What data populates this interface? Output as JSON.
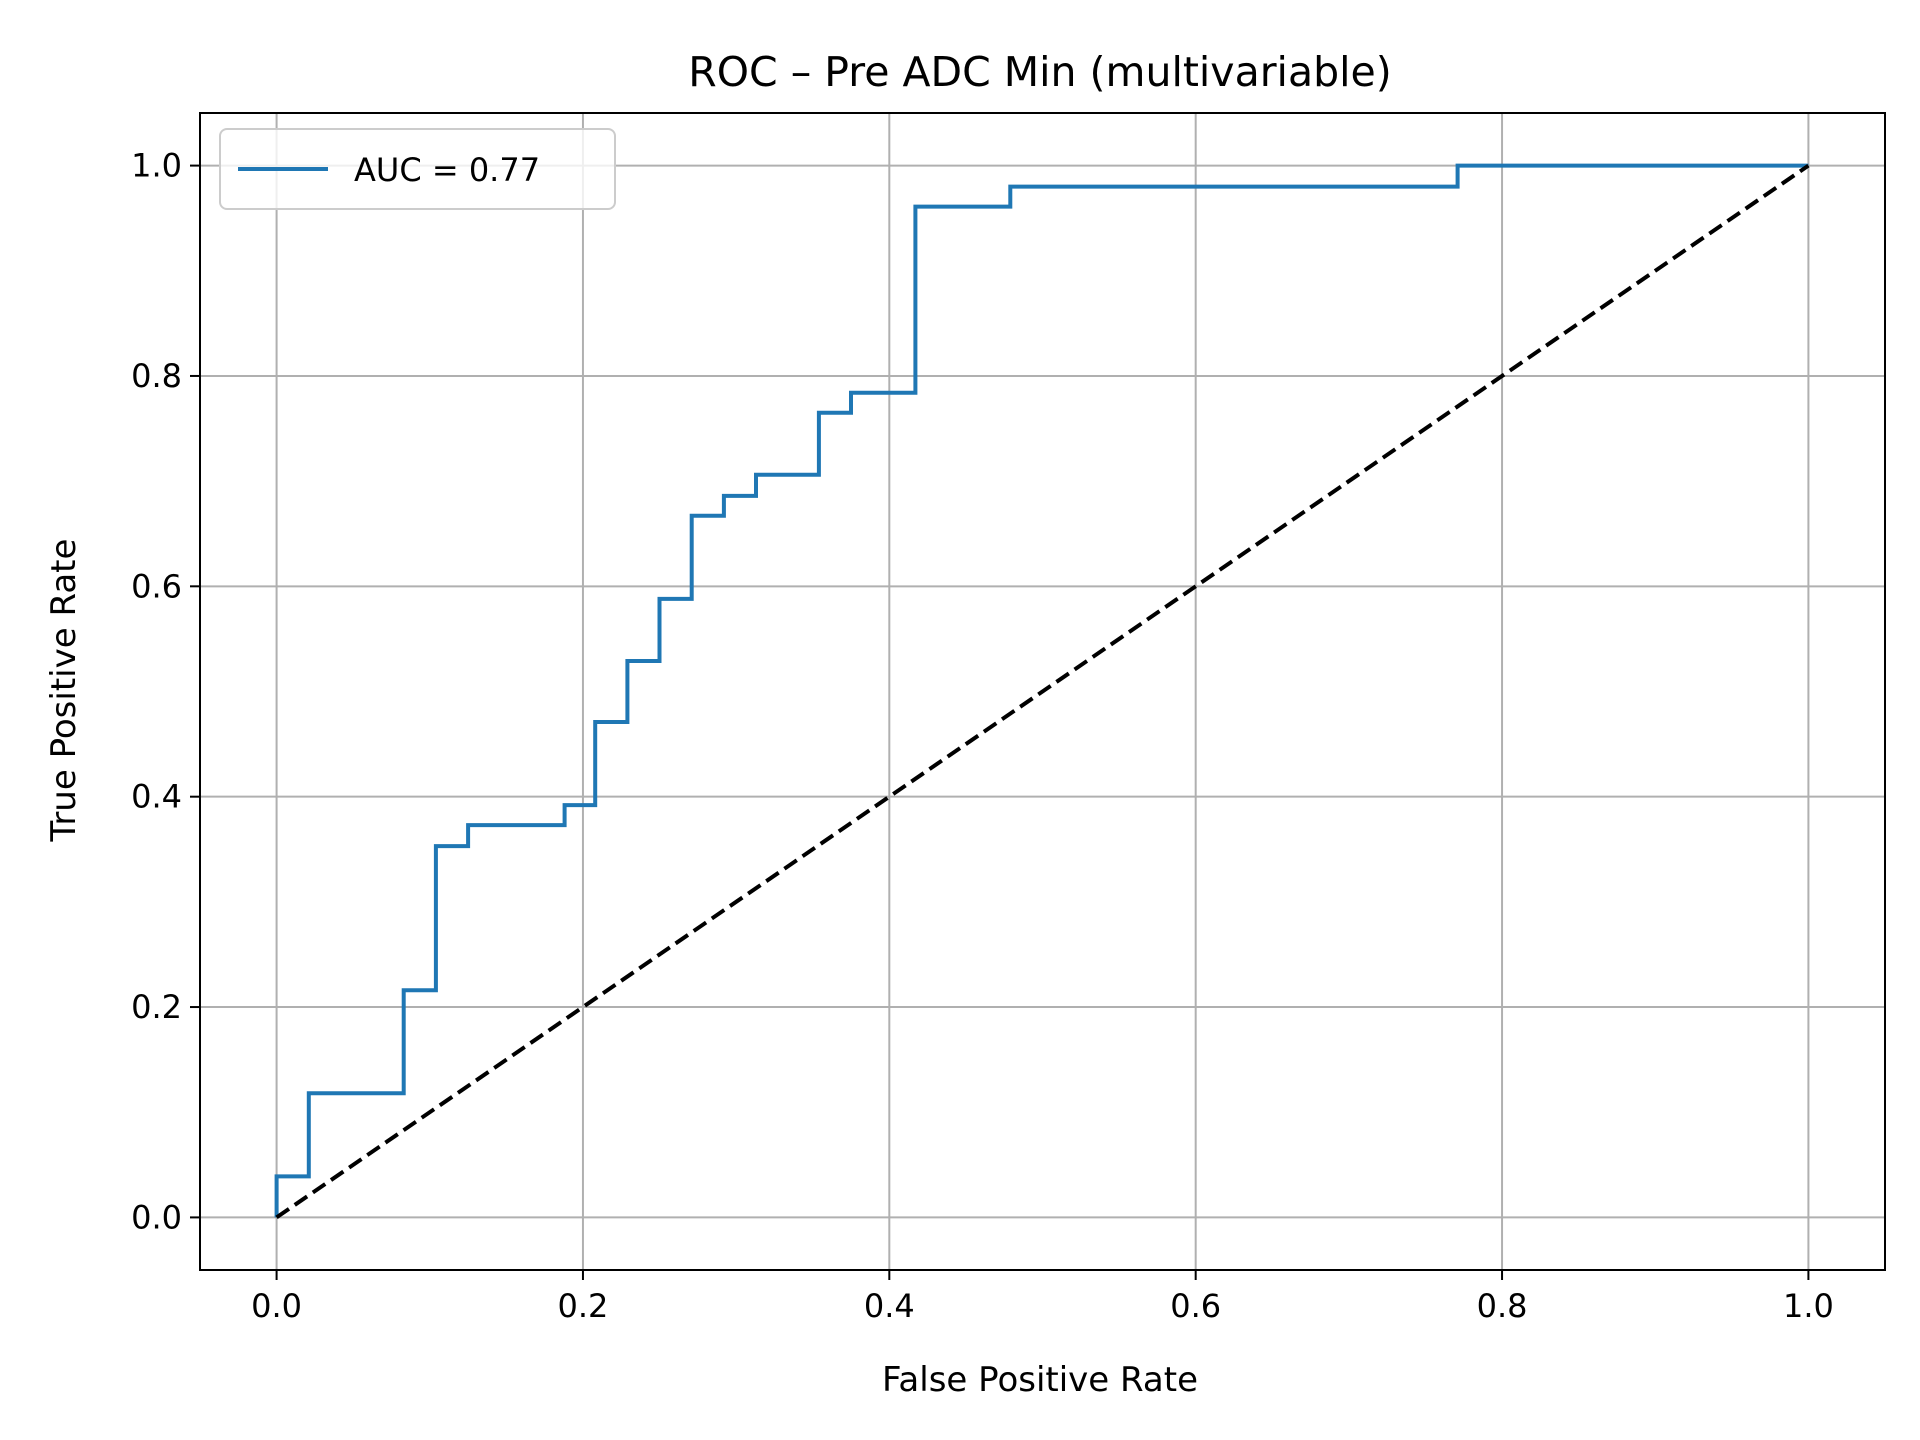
{
  "chart_data": {
    "type": "line",
    "title": "ROC – Pre ADC Min (multivariable)",
    "xlabel": "False Positive Rate",
    "ylabel": "True Positive Rate",
    "xlim": [
      -0.05,
      1.05
    ],
    "ylim": [
      -0.05,
      1.05
    ],
    "xticks": [
      0.0,
      0.2,
      0.4,
      0.6,
      0.8,
      1.0
    ],
    "xtick_labels": [
      "0.0",
      "0.2",
      "0.4",
      "0.6",
      "0.8",
      "1.0"
    ],
    "yticks": [
      0.0,
      0.2,
      0.4,
      0.6,
      0.8,
      1.0
    ],
    "ytick_labels": [
      "0.0",
      "0.2",
      "0.4",
      "0.6",
      "0.8",
      "1.0"
    ],
    "grid": true,
    "legend_position": "top-left",
    "series": [
      {
        "name": "AUC = 0.77",
        "color": "#1f77b4",
        "style": "solid",
        "x": [
          0.0,
          0.0,
          0.021,
          0.021,
          0.083,
          0.083,
          0.104,
          0.104,
          0.125,
          0.125,
          0.188,
          0.188,
          0.208,
          0.208,
          0.229,
          0.229,
          0.25,
          0.25,
          0.271,
          0.271,
          0.292,
          0.292,
          0.313,
          0.313,
          0.354,
          0.354,
          0.375,
          0.375,
          0.417,
          0.417,
          0.479,
          0.479,
          0.771,
          0.771,
          1.0
        ],
        "y": [
          0.0,
          0.039,
          0.039,
          0.118,
          0.118,
          0.216,
          0.216,
          0.353,
          0.353,
          0.373,
          0.373,
          0.392,
          0.392,
          0.471,
          0.471,
          0.529,
          0.529,
          0.588,
          0.588,
          0.667,
          0.667,
          0.686,
          0.686,
          0.706,
          0.706,
          0.765,
          0.765,
          0.784,
          0.784,
          0.961,
          0.961,
          0.98,
          0.98,
          1.0,
          1.0
        ]
      },
      {
        "name": "",
        "color": "#000000",
        "style": "dashed",
        "x": [
          0.0,
          1.0
        ],
        "y": [
          0.0,
          1.0
        ]
      }
    ]
  }
}
